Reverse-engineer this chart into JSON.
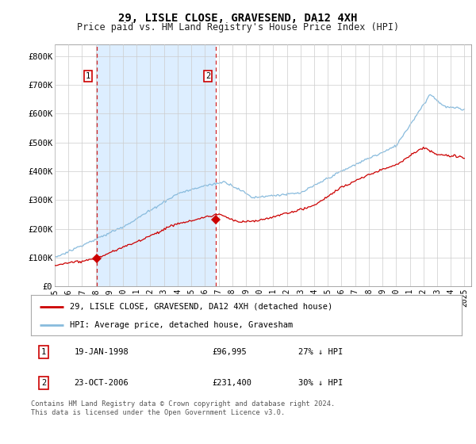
{
  "title": "29, LISLE CLOSE, GRAVESEND, DA12 4XH",
  "subtitle": "Price paid vs. HM Land Registry's House Price Index (HPI)",
  "ylabel_ticks": [
    "£0",
    "£100K",
    "£200K",
    "£300K",
    "£400K",
    "£500K",
    "£600K",
    "£700K",
    "£800K"
  ],
  "ytick_values": [
    0,
    100000,
    200000,
    300000,
    400000,
    500000,
    600000,
    700000,
    800000
  ],
  "ylim": [
    0,
    840000
  ],
  "xlim_start": 1995.0,
  "xlim_end": 2025.5,
  "fig_bg_color": "#ffffff",
  "plot_bg_color": "#ffffff",
  "shade_color": "#ddeeff",
  "grid_color": "#cccccc",
  "red_line_color": "#cc0000",
  "blue_line_color": "#88bbdd",
  "transaction1": {
    "date": "19-JAN-1998",
    "price": 96995,
    "year": 1998.05,
    "label": "1"
  },
  "transaction2": {
    "date": "23-OCT-2006",
    "price": 231400,
    "year": 2006.81,
    "label": "2"
  },
  "legend_line1": "29, LISLE CLOSE, GRAVESEND, DA12 4XH (detached house)",
  "legend_line2": "HPI: Average price, detached house, Gravesham",
  "footnote": "Contains HM Land Registry data © Crown copyright and database right 2024.\nThis data is licensed under the Open Government Licence v3.0.",
  "table_row1": [
    "1",
    "19-JAN-1998",
    "£96,995",
    "27% ↓ HPI"
  ],
  "table_row2": [
    "2",
    "23-OCT-2006",
    "£231,400",
    "30% ↓ HPI"
  ]
}
